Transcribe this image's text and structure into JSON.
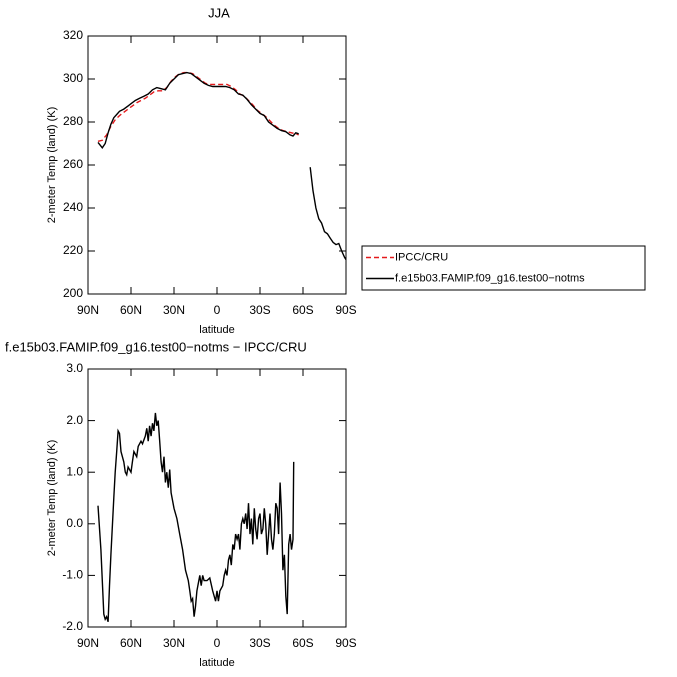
{
  "chart_data": [
    {
      "type": "line",
      "title": "JJA",
      "xlabel": "latitude",
      "ylabel": "2-meter Temp (land) (K)",
      "xlim": [
        90,
        -90
      ],
      "xticks": [
        {
          "value": 90,
          "label": "90N"
        },
        {
          "value": 60,
          "label": "60N"
        },
        {
          "value": 30,
          "label": "30N"
        },
        0,
        {
          "value": -30,
          "label": "30S"
        },
        {
          "value": -60,
          "label": "60S"
        },
        {
          "value": -90,
          "label": "90S"
        }
      ],
      "ylim": [
        200,
        320
      ],
      "yticks": [
        200,
        220,
        240,
        260,
        280,
        300,
        320
      ],
      "legend_position": "right",
      "series": [
        {
          "name": "IPCC/CRU",
          "color": "#e41a1c",
          "linestyle": "dashed",
          "x": [
            83,
            80,
            77,
            74,
            71,
            68,
            65,
            62,
            59,
            56,
            53,
            50,
            47,
            44,
            41,
            38,
            35,
            32,
            29,
            26,
            23,
            20,
            17,
            14,
            11,
            8,
            5,
            2,
            -1,
            -4,
            -7,
            -10,
            -13,
            -16,
            -19,
            -22,
            -25,
            -28,
            -31,
            -34,
            -37,
            -40,
            -43,
            -46,
            -49,
            -52,
            -55,
            -57
          ],
          "values": [
            271,
            271.5,
            274,
            278,
            281,
            283,
            284.5,
            286,
            287.5,
            289,
            290,
            291,
            292.5,
            294,
            294.5,
            294.5,
            296,
            299,
            301,
            302.5,
            303,
            303,
            302.5,
            301,
            299.5,
            298,
            297.5,
            297.5,
            297.5,
            297.5,
            297.5,
            296.5,
            295,
            293,
            292,
            290,
            288,
            285.5,
            284,
            282.5,
            280.5,
            278.5,
            277,
            276,
            275.5,
            275,
            274.5,
            274
          ]
        },
        {
          "name": "f.e15b03.FAMIP.f09_g16.test00−notms",
          "color": "#000000",
          "linestyle": "solid",
          "x": [
            83,
            80,
            78,
            76,
            74,
            72,
            70,
            68,
            65,
            62,
            60,
            57,
            54,
            51,
            48,
            45,
            42,
            39,
            36,
            33,
            30,
            27,
            24,
            21,
            18,
            15,
            12,
            9,
            6,
            3,
            0,
            -3,
            -6,
            -9,
            -12,
            -15,
            -18,
            -21,
            -24,
            -27,
            -30,
            -33,
            -36,
            -39,
            -42,
            -45,
            -48,
            -51,
            -53,
            -55,
            -57,
            -60,
            -65,
            -67,
            -69,
            -71,
            -73,
            -75,
            -77,
            -79,
            -81,
            -83,
            -85,
            -87,
            -89,
            -90
          ],
          "values": [
            270.5,
            268,
            270,
            275,
            279,
            282,
            283.5,
            285,
            286,
            287.5,
            288.5,
            290,
            291,
            292,
            293,
            295,
            296,
            295.5,
            295,
            298,
            300,
            302,
            302.5,
            303,
            302.5,
            301,
            299.5,
            298,
            297,
            296.5,
            296.5,
            296.5,
            296.5,
            296,
            295,
            293,
            292.5,
            290.5,
            288,
            286,
            284,
            283,
            280,
            278.5,
            277,
            276,
            275.5,
            274,
            273.5,
            275,
            274.5,
            null,
            259,
            248,
            240,
            235,
            233,
            229,
            228,
            226,
            224,
            223,
            223.5,
            220,
            217,
            216
          ]
        }
      ]
    },
    {
      "type": "line",
      "title": "f.e15b03.FAMIP.f09_g16.test00−notms − IPCC/CRU",
      "xlabel": "latitude",
      "ylabel": "2-meter Temp (land) (K)",
      "xlim": [
        90,
        -90
      ],
      "xticks": [
        {
          "value": 90,
          "label": "90N"
        },
        {
          "value": 60,
          "label": "60N"
        },
        {
          "value": 30,
          "label": "30N"
        },
        0,
        {
          "value": -30,
          "label": "30S"
        },
        {
          "value": -60,
          "label": "60S"
        },
        {
          "value": -90,
          "label": "90S"
        }
      ],
      "ylim": [
        -2,
        3
      ],
      "yticks": [
        {
          "value": -2,
          "label": "-2.0"
        },
        {
          "value": -1,
          "label": "-1.0"
        },
        {
          "value": 0,
          "label": "0.0"
        },
        {
          "value": 1,
          "label": "1.0"
        },
        {
          "value": 2,
          "label": "2.0"
        },
        {
          "value": 3,
          "label": "3.0"
        }
      ],
      "series": [
        {
          "color": "#000000",
          "linestyle": "solid",
          "x": [
            83,
            81,
            79,
            78,
            77,
            76,
            75,
            74,
            72,
            71,
            70,
            69,
            68,
            67,
            65,
            64,
            63,
            62,
            60,
            59,
            58,
            56,
            55,
            53,
            52,
            50,
            49,
            48,
            47,
            46,
            45,
            44,
            43,
            42,
            41,
            40,
            39,
            38,
            37,
            36,
            35,
            34,
            33,
            32,
            30,
            28,
            26,
            24,
            22,
            20,
            19,
            18,
            17,
            16,
            15,
            14,
            12,
            11,
            10,
            9,
            7,
            5,
            3,
            1,
            0,
            -1,
            -2,
            -4,
            -5,
            -6,
            -7,
            -8,
            -9,
            -10,
            -11,
            -12,
            -13,
            -14,
            -15,
            -16,
            -17,
            -18,
            -19,
            -20,
            -21,
            -22,
            -23,
            -24,
            -25,
            -26,
            -27,
            -28,
            -29,
            -30,
            -31,
            -32,
            -33,
            -34,
            -35,
            -36,
            -37,
            -38,
            -39,
            -40,
            -41,
            -42,
            -43,
            -44,
            -45,
            -46,
            -47,
            -48,
            -49,
            -50,
            -51,
            -52,
            -53,
            -53.5
          ],
          "values": [
            0.35,
            -0.5,
            -1.75,
            -1.85,
            -1.8,
            -1.9,
            -1.2,
            -0.6,
            0.5,
            1.0,
            1.4,
            1.8,
            1.75,
            1.4,
            1.2,
            1.0,
            0.95,
            1.1,
            1.0,
            1.2,
            1.4,
            1.3,
            1.5,
            1.6,
            1.55,
            1.7,
            1.85,
            1.6,
            1.9,
            1.7,
            1.95,
            1.8,
            2.15,
            1.9,
            2.0,
            1.6,
            1.2,
            1.0,
            1.3,
            0.8,
            1.0,
            0.7,
            1.05,
            0.6,
            0.3,
            0.1,
            -0.2,
            -0.5,
            -0.9,
            -1.1,
            -1.3,
            -1.5,
            -1.45,
            -1.8,
            -1.6,
            -1.3,
            -1.0,
            -1.2,
            -1.0,
            -1.1,
            -1.1,
            -1.05,
            -1.3,
            -1.5,
            -1.3,
            -1.5,
            -1.3,
            -1.2,
            -1.0,
            -0.9,
            -1.0,
            -0.7,
            -0.6,
            -0.8,
            -0.4,
            -0.5,
            -0.2,
            -0.3,
            -0.2,
            -0.5,
            0.0,
            0.1,
            0.0,
            0.2,
            -0.1,
            0.4,
            -0.2,
            0.1,
            -0.4,
            0.3,
            -0.1,
            -0.3,
            0.1,
            0.2,
            -0.2,
            -0.1,
            0.3,
            0.0,
            -0.6,
            -0.2,
            0.2,
            -0.3,
            -0.5,
            -0.2,
            0.4,
            0.3,
            -0.2,
            0.8,
            0.2,
            -0.9,
            -0.6,
            -1.4,
            -1.75,
            -0.4,
            -0.2,
            -0.5,
            -0.3,
            1.2
          ]
        }
      ]
    }
  ]
}
